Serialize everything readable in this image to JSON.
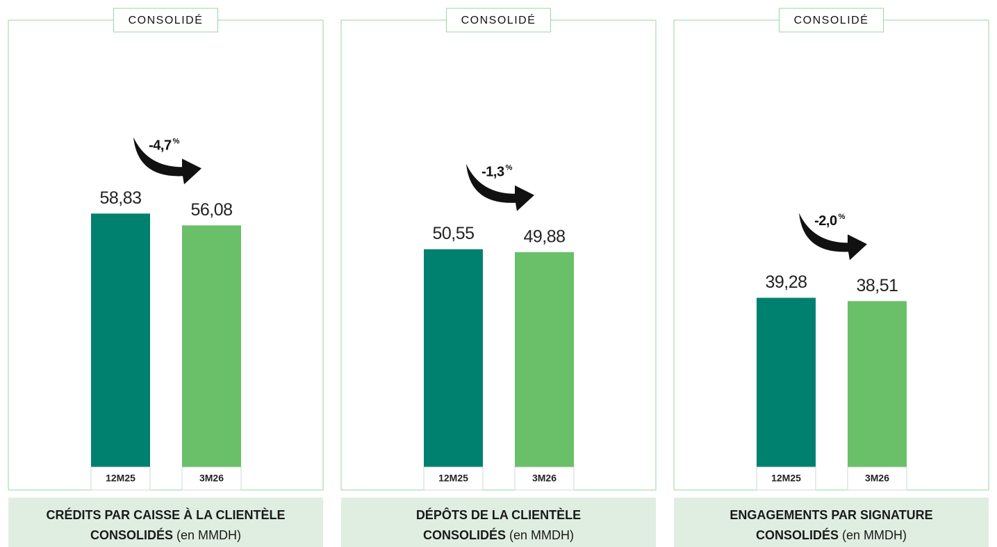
{
  "chart_data": [
    {
      "type": "bar",
      "badge": "CONSOLIDÉ",
      "title": [
        "CRÉDITS PAR CAISSE À LA CLIENTÈLE",
        "CONSOLIDÉS"
      ],
      "subtitle": "(en MMDH)",
      "categories": [
        "12M25",
        "3M26"
      ],
      "values": [
        58.83,
        56.08
      ],
      "value_labels": [
        "58,83",
        "56,08"
      ],
      "colors": [
        "#00806f",
        "#6abf69"
      ],
      "annotation": {
        "value": "-4,7",
        "unit": "%"
      }
    },
    {
      "type": "bar",
      "badge": "CONSOLIDÉ",
      "title": [
        "DÉPÔTS DE LA CLIENTÈLE",
        "CONSOLIDÉS"
      ],
      "subtitle": "(en MMDH)",
      "categories": [
        "12M25",
        "3M26"
      ],
      "values": [
        50.55,
        49.88
      ],
      "value_labels": [
        "50,55",
        "49,88"
      ],
      "colors": [
        "#00806f",
        "#6abf69"
      ],
      "annotation": {
        "value": "-1,3",
        "unit": "%"
      }
    },
    {
      "type": "bar",
      "badge": "CONSOLIDÉ",
      "title": [
        "ENGAGEMENTS PAR SIGNATURE",
        "CONSOLIDÉS"
      ],
      "subtitle": "(en MMDH)",
      "categories": [
        "12M25",
        "3M26"
      ],
      "values": [
        39.28,
        38.51
      ],
      "value_labels": [
        "39,28",
        "38,51"
      ],
      "colors": [
        "#00806f",
        "#6abf69"
      ],
      "annotation": {
        "value": "-2,0",
        "unit": "%"
      }
    }
  ]
}
